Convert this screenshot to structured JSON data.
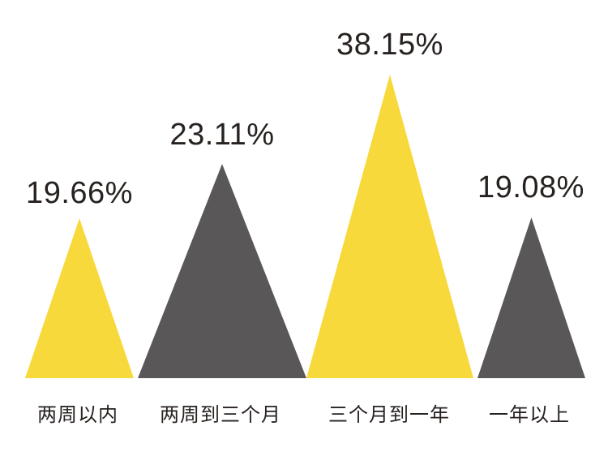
{
  "background_color": "#ffffff",
  "text_color": "#272220",
  "chart_data": {
    "type": "bar",
    "variant": "triangle-pictogram",
    "title": "",
    "xlabel": "",
    "ylabel": "",
    "grid": false,
    "legend": false,
    "baseline": "all triangle bars share one bottom baseline",
    "categories": [
      "两周以内",
      "两周到三个月",
      "三个月到一年",
      "一年以上"
    ],
    "values": [
      19.66,
      23.11,
      38.15,
      19.08
    ],
    "value_labels": [
      "19.66%",
      "23.11%",
      "38.15%",
      "19.08%"
    ],
    "colors": [
      "#F8D93B",
      "#595757",
      "#F8D93B",
      "#595757"
    ],
    "accent_yellow": "#F8D93B",
    "accent_gray": "#595757"
  }
}
